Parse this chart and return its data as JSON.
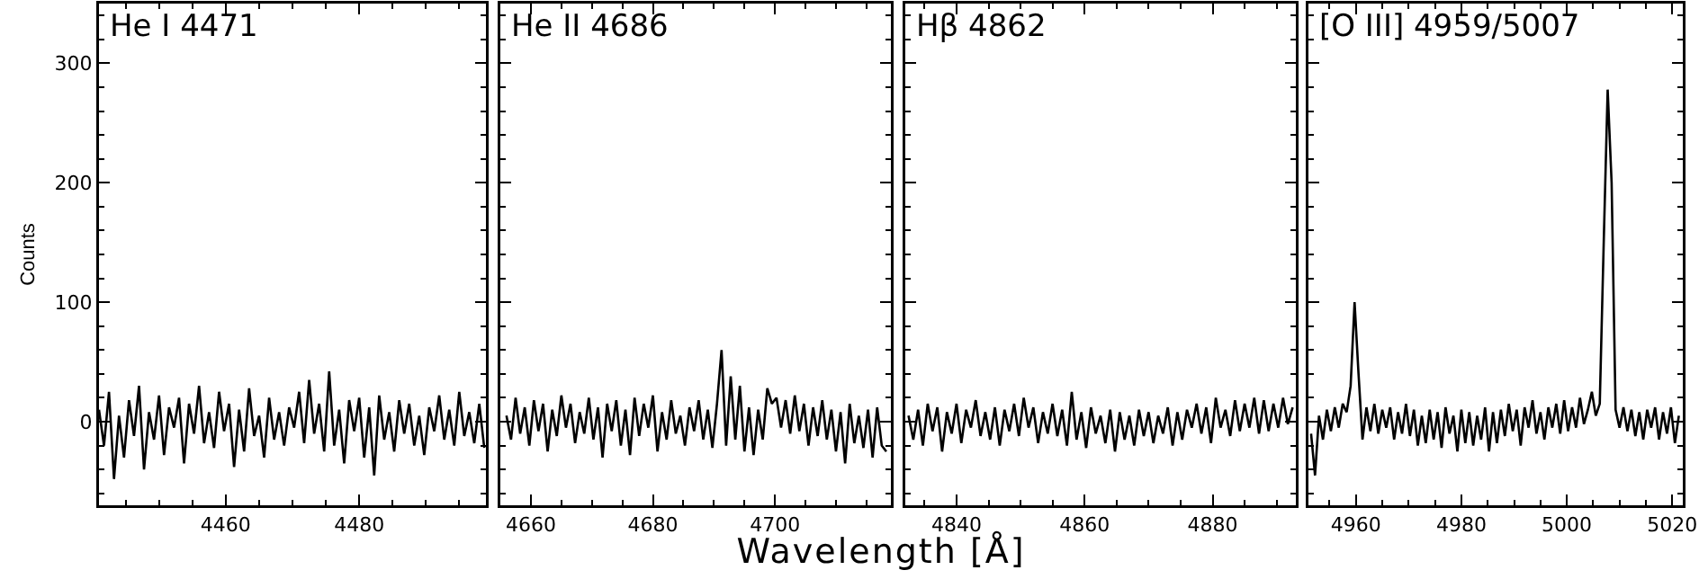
{
  "chart_data": [
    {
      "type": "line",
      "title": "He I 4471",
      "ylabel": "Counts",
      "xlim": [
        4441,
        4499
      ],
      "xticks": [
        4460,
        4480
      ],
      "ylim": [
        -70,
        350
      ],
      "yticks": [
        0,
        100,
        200,
        300
      ],
      "x": [
        4441,
        4441.75,
        4442.5,
        4443.25,
        4444,
        4444.75,
        4445.5,
        4446.25,
        4447,
        4447.75,
        4448.5,
        4449.25,
        4450,
        4450.75,
        4451.5,
        4452.25,
        4453,
        4453.75,
        4454.5,
        4455.25,
        4456,
        4456.75,
        4457.5,
        4458.25,
        4459,
        4459.75,
        4460.5,
        4461.25,
        4462,
        4462.75,
        4463.5,
        4464.25,
        4465,
        4465.75,
        4466.5,
        4467.25,
        4468,
        4468.75,
        4469.5,
        4470.25,
        4471,
        4471.75,
        4472.5,
        4473.25,
        4474,
        4474.75,
        4475.5,
        4476.25,
        4477,
        4477.75,
        4478.5,
        4479.25,
        4480,
        4480.75,
        4481.5,
        4482.25,
        4483,
        4483.75,
        4484.5,
        4485.25,
        4486,
        4486.75,
        4487.5,
        4488.25,
        4489,
        4489.75,
        4490.5,
        4491.25,
        4492,
        4492.75,
        4493.5,
        4494.25,
        4495,
        4495.75,
        4496.5,
        4497.25,
        4498,
        4498.75
      ],
      "series": [
        {
          "color": "#000000",
          "values": [
            10,
            -20,
            25,
            -48,
            5,
            -30,
            18,
            -12,
            30,
            -40,
            8,
            -15,
            22,
            -28,
            12,
            -5,
            20,
            -35,
            15,
            -10,
            30,
            -18,
            8,
            -22,
            25,
            -8,
            15,
            -38,
            10,
            -25,
            28,
            -12,
            5,
            -30,
            20,
            -15,
            8,
            -20,
            12,
            -5,
            25,
            -18,
            35,
            -10,
            15,
            -25,
            42,
            -20,
            10,
            -35,
            18,
            -8,
            20,
            -30,
            12,
            -45,
            22,
            -15,
            8,
            -25,
            18,
            -10,
            15,
            -20,
            5,
            -28,
            12,
            -8,
            22,
            -15,
            10,
            -20,
            25,
            -12,
            8,
            -18,
            15,
            -22
          ]
        }
      ]
    },
    {
      "type": "line",
      "title": "He II 4686",
      "xlabel": "Wavelength [Å]",
      "tick_labels": "x",
      "xlim": [
        4655,
        4719
      ],
      "xticks": [
        4660,
        4680,
        4700
      ],
      "ylim": [
        -70,
        350
      ],
      "yticks": [
        0,
        100,
        200,
        300
      ],
      "x": [
        4656,
        4656.75,
        4657.5,
        4658.25,
        4659,
        4659.75,
        4660.5,
        4661.25,
        4662,
        4662.75,
        4663.5,
        4664.25,
        4665,
        4665.75,
        4666.5,
        4667.25,
        4668,
        4668.75,
        4669.5,
        4670.25,
        4671,
        4671.75,
        4672.5,
        4673.25,
        4674,
        4674.75,
        4675.5,
        4676.25,
        4677,
        4677.75,
        4678.5,
        4679.25,
        4680,
        4680.75,
        4681.5,
        4682.25,
        4683,
        4683.75,
        4684.5,
        4685.25,
        4686,
        4686.75,
        4687.5,
        4688.25,
        4689,
        4689.75,
        4690.5,
        4691.25,
        4692,
        4692.75,
        4693.5,
        4694.25,
        4695,
        4695.75,
        4696.5,
        4697.25,
        4698,
        4698.75,
        4699.5,
        4700.25,
        4701,
        4701.75,
        4702.5,
        4703.25,
        4704,
        4704.75,
        4705.5,
        4706.25,
        4707,
        4707.75,
        4708.5,
        4709.25,
        4710,
        4710.75,
        4711.5,
        4712.25,
        4713,
        4713.75,
        4714.5,
        4715.25,
        4716,
        4716.75,
        4717.5,
        4718.25
      ],
      "series": [
        {
          "color": "#000000",
          "values": [
            5,
            -15,
            20,
            -10,
            12,
            -20,
            18,
            -8,
            15,
            -25,
            10,
            -12,
            22,
            -5,
            15,
            -18,
            8,
            -10,
            20,
            -15,
            12,
            -30,
            15,
            -8,
            18,
            -20,
            10,
            -28,
            20,
            -12,
            15,
            -5,
            22,
            -25,
            8,
            -15,
            18,
            -10,
            5,
            -20,
            12,
            -8,
            18,
            -15,
            10,
            -22,
            15,
            60,
            -20,
            38,
            -15,
            30,
            -25,
            12,
            -28,
            10,
            -15,
            28,
            15,
            20,
            -5,
            18,
            -10,
            22,
            -8,
            15,
            -20,
            12,
            -12,
            18,
            -15,
            10,
            -25,
            8,
            -35,
            15,
            -18,
            5,
            -22,
            10,
            -30,
            12,
            -20,
            -25
          ]
        }
      ]
    },
    {
      "type": "line",
      "title": "Hβ 4862",
      "tick_labels": "x",
      "xlim": [
        4832,
        4893
      ],
      "xticks": [
        4840,
        4860,
        4880
      ],
      "ylim": [
        -70,
        350
      ],
      "yticks": [
        0,
        100,
        200,
        300
      ],
      "x": [
        4832.5,
        4833.25,
        4834,
        4834.75,
        4835.5,
        4836.25,
        4837,
        4837.75,
        4838.5,
        4839.25,
        4840,
        4840.75,
        4841.5,
        4842.25,
        4843,
        4843.75,
        4844.5,
        4845.25,
        4846,
        4846.75,
        4847.5,
        4848.25,
        4849,
        4849.75,
        4850.5,
        4851.25,
        4852,
        4852.75,
        4853.5,
        4854.25,
        4855,
        4855.75,
        4856.5,
        4857.25,
        4858,
        4858.75,
        4859.5,
        4860.25,
        4861,
        4861.75,
        4862.5,
        4863.25,
        4864,
        4864.75,
        4865.5,
        4866.25,
        4867,
        4867.75,
        4868.5,
        4869.25,
        4870,
        4870.75,
        4871.5,
        4872.25,
        4873,
        4873.75,
        4874.5,
        4875.25,
        4876,
        4876.75,
        4877.5,
        4878.25,
        4879,
        4879.75,
        4880.5,
        4881.25,
        4882,
        4882.75,
        4883.5,
        4884.25,
        4885,
        4885.75,
        4886.5,
        4887.25,
        4888,
        4888.75,
        4889.5,
        4890.25,
        4891,
        4891.75,
        4892.5
      ],
      "series": [
        {
          "color": "#000000",
          "values": [
            5,
            -15,
            10,
            -20,
            15,
            -8,
            12,
            -25,
            8,
            -10,
            15,
            -18,
            10,
            -5,
            18,
            -12,
            8,
            -15,
            12,
            -20,
            10,
            -8,
            15,
            -12,
            20,
            -5,
            12,
            -18,
            8,
            -10,
            15,
            -12,
            10,
            -20,
            25,
            -15,
            8,
            -22,
            12,
            -10,
            5,
            -18,
            10,
            -25,
            8,
            -15,
            5,
            -20,
            10,
            -12,
            8,
            -18,
            5,
            -10,
            12,
            -20,
            8,
            -15,
            10,
            -5,
            15,
            -10,
            12,
            -18,
            20,
            -5,
            10,
            -12,
            18,
            -8,
            15,
            -5,
            20,
            -10,
            18,
            -8,
            15,
            -5,
            20,
            -2,
            12
          ]
        }
      ]
    },
    {
      "type": "line",
      "title": "[O III] 4959/5007",
      "tick_labels": "x",
      "xlim": [
        4951,
        5022
      ],
      "xticks": [
        4960,
        4980,
        5000,
        5020
      ],
      "ylim": [
        -70,
        350
      ],
      "yticks": [
        0,
        100,
        200,
        300
      ],
      "x": [
        4951.5,
        4952.25,
        4953,
        4953.75,
        4954.5,
        4955.25,
        4956,
        4956.75,
        4957.5,
        4958.25,
        4959,
        4959.75,
        4960.5,
        4961.25,
        4962,
        4962.75,
        4963.5,
        4964.25,
        4965,
        4965.75,
        4966.5,
        4967.25,
        4968,
        4968.75,
        4969.5,
        4970.25,
        4971,
        4971.75,
        4972.5,
        4973.25,
        4974,
        4974.75,
        4975.5,
        4976.25,
        4977,
        4977.75,
        4978.5,
        4979.25,
        4980,
        4980.75,
        4981.5,
        4982.25,
        4983,
        4983.75,
        4984.5,
        4985.25,
        4986,
        4986.75,
        4987.5,
        4988.25,
        4989,
        4989.75,
        4990.5,
        4991.25,
        4992,
        4992.75,
        4993.5,
        4994.25,
        4995,
        4995.75,
        4996.5,
        4997.25,
        4998,
        4998.75,
        4999.5,
        5000.25,
        5001,
        5001.75,
        5002.5,
        5003.25,
        5004,
        5004.75,
        5005.5,
        5006.25,
        5007,
        5007.75,
        5008.5,
        5009.25,
        5010,
        5010.75,
        5011.5,
        5012.25,
        5013,
        5013.75,
        5014.5,
        5015.25,
        5016,
        5016.75,
        5017.5,
        5018.25,
        5019,
        5019.75,
        5020.5,
        5021.25
      ],
      "series": [
        {
          "color": "#000000",
          "values": [
            -10,
            -45,
            5,
            -15,
            10,
            -8,
            12,
            -5,
            15,
            8,
            30,
            100,
            40,
            -15,
            12,
            -8,
            15,
            -10,
            10,
            -5,
            12,
            -15,
            8,
            -10,
            15,
            -12,
            10,
            -20,
            5,
            -18,
            10,
            -15,
            8,
            -22,
            12,
            -10,
            5,
            -25,
            10,
            -18,
            8,
            -20,
            5,
            -15,
            12,
            -25,
            8,
            -18,
            10,
            -12,
            15,
            -8,
            10,
            -20,
            12,
            -5,
            18,
            -10,
            8,
            -15,
            12,
            -5,
            15,
            -10,
            18,
            -8,
            12,
            -5,
            20,
            -2,
            10,
            25,
            5,
            15,
            150,
            278,
            200,
            10,
            -5,
            12,
            -8,
            10,
            -12,
            8,
            -15,
            10,
            -5,
            12,
            -15,
            8,
            -10,
            12,
            -18,
            5
          ]
        }
      ]
    }
  ]
}
